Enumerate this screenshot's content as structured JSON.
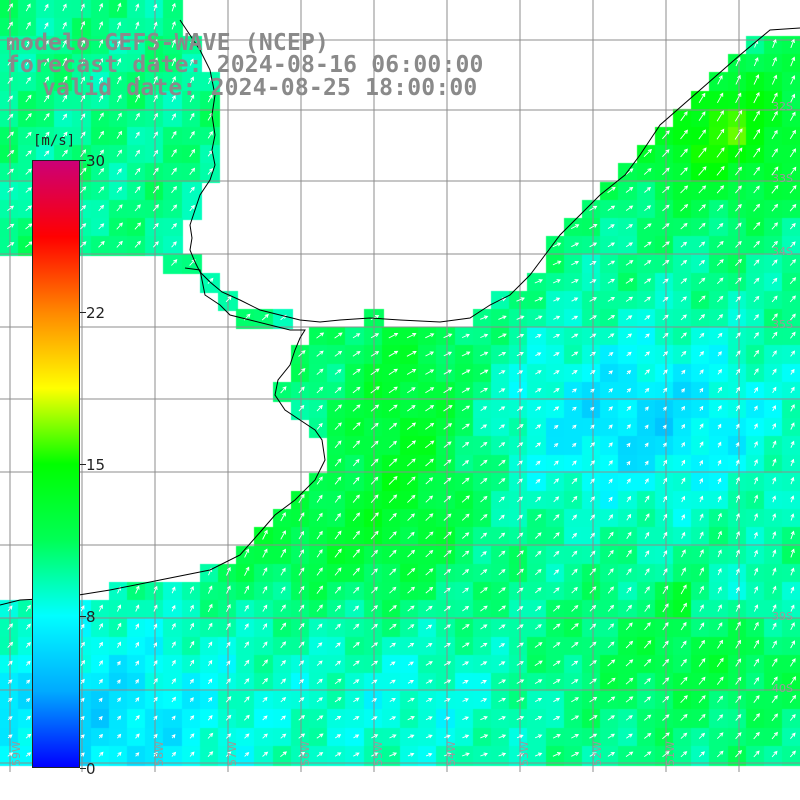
{
  "title": {
    "model": "modelo GEFS-WAVE (NCEP)",
    "forecast": "forecast date: 2024-08-16 06:00:00",
    "valid": "valid date: 2024-08-25 18:00:00"
  },
  "colorbar": {
    "unit": "[m/s]",
    "min": 0,
    "max": 30,
    "ticks": [
      "0",
      "8",
      "15",
      "22",
      "30"
    ],
    "tick_values": [
      0,
      7.5,
      15,
      22.5,
      30
    ],
    "colors": [
      "#0000ff",
      "#00aaff",
      "#00ffff",
      "#00ff55",
      "#00ff00",
      "#ffff00",
      "#ff8800",
      "#ff0000",
      "#cc0077"
    ]
  },
  "map": {
    "lat_labels": [
      "32S",
      "33S",
      "34S",
      "35S",
      "39S",
      "40S"
    ],
    "lon_labels": [
      "59W",
      "58W",
      "57W",
      "56W",
      "55W",
      "54W",
      "53W",
      "52W",
      "51W"
    ],
    "land_color": "#ffffff",
    "grid_color": "#8c8c8c",
    "coast_color": "#000000",
    "arrow_color": "#ffffff"
  }
}
